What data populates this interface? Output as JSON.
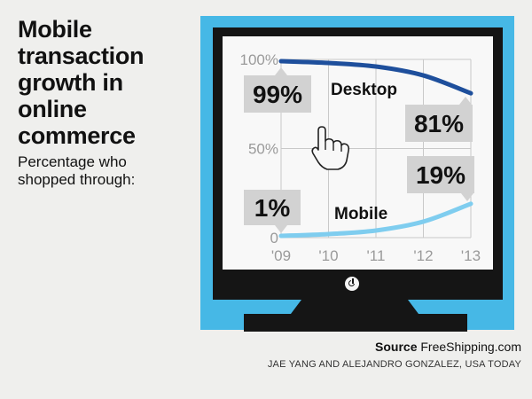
{
  "headline": "Mobile transaction growth in online commerce",
  "subtitle": "Percentage who shopped through:",
  "source_label": "Source",
  "source_value": "FreeShipping.com",
  "credit": "JAE YANG AND ALEJANDRO GONZALEZ, USA TODAY",
  "icon": "hand-pointer-icon",
  "colors": {
    "desktop": "#1e4f9c",
    "mobile": "#7fcdef",
    "panel": "#46b8e6",
    "callout": "#d2d2d2"
  },
  "chart_data": {
    "type": "line",
    "x": [
      "'09",
      "'10",
      "'11",
      "'12",
      "'13"
    ],
    "y_ticks": [
      "0",
      "50%",
      "100%"
    ],
    "ylim": [
      0,
      100
    ],
    "series": [
      {
        "name": "Desktop",
        "values": [
          99,
          98,
          96,
          91,
          81
        ],
        "callouts": [
          {
            "index": 0,
            "label": "99%"
          },
          {
            "index": 4,
            "label": "81%"
          }
        ]
      },
      {
        "name": "Mobile",
        "values": [
          1,
          2,
          4,
          9,
          19
        ],
        "callouts": [
          {
            "index": 0,
            "label": "1%"
          },
          {
            "index": 4,
            "label": "19%"
          }
        ]
      }
    ]
  }
}
